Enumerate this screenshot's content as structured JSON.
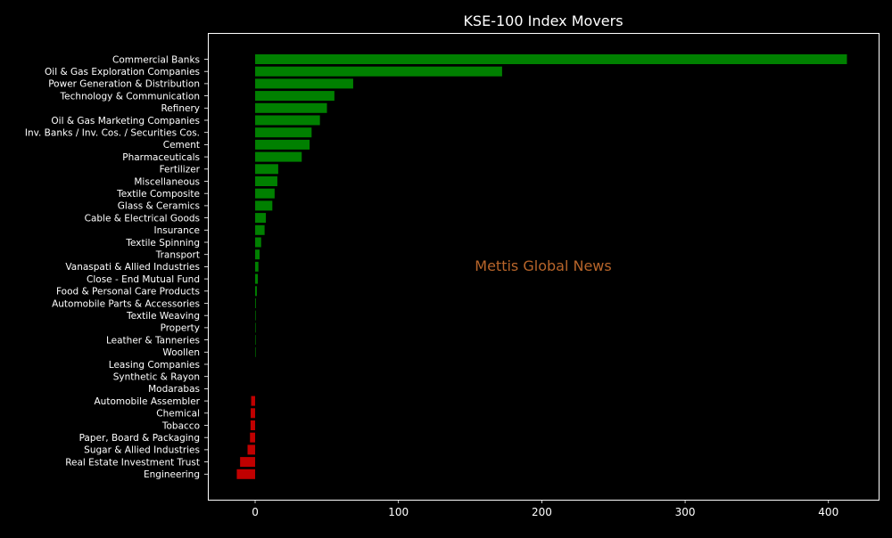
{
  "chart_data": {
    "type": "bar",
    "orientation": "horizontal",
    "title": "KSE-100 Index Movers",
    "xlabel": "",
    "ylabel": "",
    "watermark": "Mettis Global News",
    "xlim": [
      -33,
      435
    ],
    "xticks": [
      0,
      100,
      200,
      300,
      400
    ],
    "grid": false,
    "legend": "none",
    "colors": {
      "background": "#000000",
      "text": "#ffffff",
      "positive": "#008000",
      "negative": "#c00000",
      "watermark": "#b8652a",
      "axes_edge": "#ffffff"
    },
    "categories": [
      "Commercial Banks",
      "Oil & Gas Exploration Companies",
      "Power Generation & Distribution",
      "Technology & Communication",
      "Refinery",
      "Oil & Gas Marketing Companies",
      "Inv. Banks / Inv. Cos. / Securities Cos.",
      "Cement",
      "Pharmaceuticals",
      "Fertilizer",
      "Miscellaneous",
      "Textile Composite",
      "Glass & Ceramics",
      "Cable & Electrical Goods",
      "Insurance",
      "Textile Spinning",
      "Transport",
      "Vanaspati & Allied Industries",
      "Close - End Mutual Fund",
      "Food & Personal Care Products",
      "Automobile Parts & Accessories",
      "Textile Weaving",
      "Property",
      "Leather & Tanneries",
      "Woollen",
      "Leasing Companies",
      "Synthetic & Rayon",
      "Modarabas",
      "Automobile Assembler",
      "Chemical",
      "Tobacco",
      "Paper, Board & Packaging",
      "Sugar & Allied Industries",
      "Real Estate Investment Trust",
      "Engineering"
    ],
    "values": [
      412.9,
      172.3,
      68.4,
      55.3,
      50.1,
      45.2,
      39.4,
      38.0,
      32.5,
      16.1,
      15.5,
      13.6,
      12.0,
      7.5,
      6.6,
      4.2,
      3.1,
      2.3,
      1.9,
      1.2,
      0.5,
      0.4,
      0.3,
      0.3,
      0.2,
      0.0,
      0.0,
      0.0,
      -2.8,
      -3.1,
      -3.2,
      -3.6,
      -5.3,
      -10.5,
      -12.8
    ]
  }
}
